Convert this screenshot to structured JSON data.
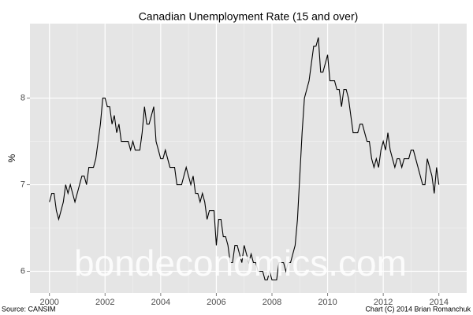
{
  "chart_data": {
    "type": "line",
    "title": "Canadian Unemployment Rate (15 and over)",
    "y_label": "%",
    "source": "Source: CANSIM",
    "credit": "Chart (C) 2014 Brian Romanchuk",
    "watermark": "bondeconomics.com",
    "color": "#000000",
    "grid": true,
    "xlim": [
      1999.3,
      2015.0
    ],
    "xticks": [
      2000,
      2002,
      2004,
      2006,
      2008,
      2010,
      2012,
      2014
    ],
    "ylim": [
      5.75,
      8.86
    ],
    "yticks": [
      6,
      7,
      8
    ],
    "x": [
      2000,
      2000.083,
      2000.167,
      2000.25,
      2000.333,
      2000.417,
      2000.5,
      2000.583,
      2000.667,
      2000.75,
      2000.833,
      2000.917,
      2001,
      2001.083,
      2001.167,
      2001.25,
      2001.333,
      2001.417,
      2001.5,
      2001.583,
      2001.667,
      2001.75,
      2001.833,
      2001.917,
      2002,
      2002.083,
      2002.167,
      2002.25,
      2002.333,
      2002.417,
      2002.5,
      2002.583,
      2002.667,
      2002.75,
      2002.833,
      2002.917,
      2003,
      2003.083,
      2003.167,
      2003.25,
      2003.333,
      2003.417,
      2003.5,
      2003.583,
      2003.667,
      2003.75,
      2003.833,
      2003.917,
      2004,
      2004.083,
      2004.167,
      2004.25,
      2004.333,
      2004.417,
      2004.5,
      2004.583,
      2004.667,
      2004.75,
      2004.833,
      2004.917,
      2005,
      2005.083,
      2005.167,
      2005.25,
      2005.333,
      2005.417,
      2005.5,
      2005.583,
      2005.667,
      2005.75,
      2005.833,
      2005.917,
      2006,
      2006.083,
      2006.167,
      2006.25,
      2006.333,
      2006.417,
      2006.5,
      2006.583,
      2006.667,
      2006.75,
      2006.833,
      2006.917,
      2007,
      2007.083,
      2007.167,
      2007.25,
      2007.333,
      2007.417,
      2007.5,
      2007.583,
      2007.667,
      2007.75,
      2007.833,
      2007.917,
      2008,
      2008.083,
      2008.167,
      2008.25,
      2008.333,
      2008.417,
      2008.5,
      2008.583,
      2008.667,
      2008.75,
      2008.833,
      2008.917,
      2009,
      2009.083,
      2009.167,
      2009.25,
      2009.333,
      2009.417,
      2009.5,
      2009.583,
      2009.667,
      2009.75,
      2009.833,
      2009.917,
      2010,
      2010.083,
      2010.167,
      2010.25,
      2010.333,
      2010.417,
      2010.5,
      2010.583,
      2010.667,
      2010.75,
      2010.833,
      2010.917,
      2011,
      2011.083,
      2011.167,
      2011.25,
      2011.333,
      2011.417,
      2011.5,
      2011.583,
      2011.667,
      2011.75,
      2011.833,
      2011.917,
      2012,
      2012.083,
      2012.167,
      2012.25,
      2012.333,
      2012.417,
      2012.5,
      2012.583,
      2012.667,
      2012.75,
      2012.833,
      2012.917,
      2013,
      2013.083,
      2013.167,
      2013.25,
      2013.333,
      2013.417,
      2013.5,
      2013.583,
      2013.667,
      2013.75,
      2013.833,
      2013.917,
      2014
    ],
    "values": [
      6.8,
      6.9,
      6.9,
      6.7,
      6.6,
      6.7,
      6.8,
      7.0,
      6.9,
      7.0,
      6.9,
      6.8,
      6.9,
      7.0,
      7.1,
      7.1,
      7.0,
      7.2,
      7.2,
      7.2,
      7.3,
      7.5,
      7.7,
      8.0,
      8.0,
      7.9,
      7.9,
      7.7,
      7.8,
      7.6,
      7.7,
      7.5,
      7.5,
      7.5,
      7.5,
      7.4,
      7.5,
      7.4,
      7.4,
      7.4,
      7.6,
      7.9,
      7.7,
      7.7,
      7.8,
      7.9,
      7.5,
      7.4,
      7.3,
      7.3,
      7.4,
      7.3,
      7.2,
      7.2,
      7.2,
      7.0,
      7.0,
      7.0,
      7.1,
      7.2,
      7.1,
      7.0,
      7.1,
      6.9,
      6.9,
      6.8,
      6.9,
      6.8,
      6.6,
      6.7,
      6.7,
      6.7,
      6.3,
      6.6,
      6.6,
      6.4,
      6.4,
      6.3,
      6.1,
      6.1,
      6.3,
      6.3,
      6.2,
      6.1,
      6.3,
      6.2,
      6.1,
      6.2,
      6.1,
      6.1,
      6.0,
      6.0,
      6.0,
      5.9,
      5.9,
      6.0,
      5.9,
      5.9,
      5.9,
      6.1,
      6.1,
      6.1,
      6.0,
      6.1,
      6.1,
      6.2,
      6.3,
      6.6,
      7.1,
      7.6,
      8.0,
      8.1,
      8.2,
      8.4,
      8.6,
      8.6,
      8.7,
      8.3,
      8.3,
      8.4,
      8.5,
      8.2,
      8.2,
      8.2,
      8.1,
      8.1,
      7.9,
      8.1,
      8.1,
      8.0,
      7.8,
      7.6,
      7.6,
      7.6,
      7.7,
      7.7,
      7.6,
      7.5,
      7.5,
      7.3,
      7.2,
      7.3,
      7.2,
      7.4,
      7.5,
      7.4,
      7.6,
      7.4,
      7.3,
      7.2,
      7.3,
      7.3,
      7.2,
      7.3,
      7.3,
      7.3,
      7.4,
      7.4,
      7.3,
      7.2,
      7.1,
      7.0,
      7.0,
      7.3,
      7.2,
      7.1,
      6.9,
      7.2,
      7.0
    ]
  }
}
